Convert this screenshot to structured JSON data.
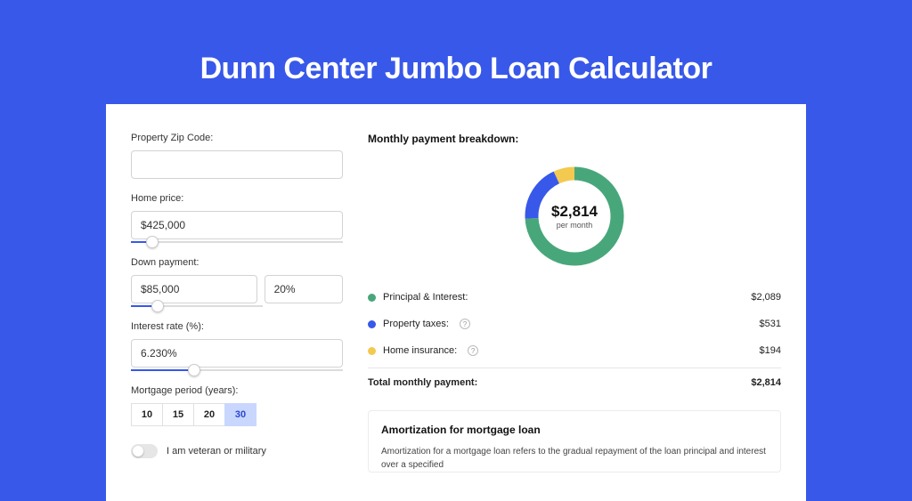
{
  "colors": {
    "page_bg": "#3858e9",
    "card_bg": "#ffffff",
    "title_color": "#ffffff",
    "slider_fill": "#3858e9",
    "period_active_bg": "#c9d7ff",
    "period_active_fg": "#2a48d0"
  },
  "title": "Dunn Center Jumbo Loan Calculator",
  "form": {
    "zip": {
      "label": "Property Zip Code:",
      "value": ""
    },
    "home_price": {
      "label": "Home price:",
      "value": "$425,000",
      "slider_pct": 10
    },
    "down_payment": {
      "label": "Down payment:",
      "amount": "$85,000",
      "percent": "20%",
      "slider_pct": 20
    },
    "interest": {
      "label": "Interest rate (%):",
      "value": "6.230%",
      "slider_pct": 30
    },
    "period": {
      "label": "Mortgage period (years):",
      "options": [
        "10",
        "15",
        "20",
        "30"
      ],
      "active_index": 3
    },
    "veteran": {
      "label": "I am veteran or military",
      "checked": false
    }
  },
  "breakdown": {
    "title": "Monthly payment breakdown:",
    "donut": {
      "amount": "$2,814",
      "label": "per month",
      "segments": [
        {
          "name": "principal_interest",
          "value": 2089,
          "color": "#48a77a",
          "pct": 74.2
        },
        {
          "name": "property_taxes",
          "value": 531,
          "color": "#3858e9",
          "pct": 18.9
        },
        {
          "name": "home_insurance",
          "value": 194,
          "color": "#f3c94f",
          "pct": 6.9
        }
      ],
      "stroke_width": 15
    },
    "rows": [
      {
        "dot": "#48a77a",
        "label": "Principal & Interest:",
        "info": false,
        "value": "$2,089"
      },
      {
        "dot": "#3858e9",
        "label": "Property taxes:",
        "info": true,
        "value": "$531"
      },
      {
        "dot": "#f3c94f",
        "label": "Home insurance:",
        "info": true,
        "value": "$194"
      }
    ],
    "total": {
      "label": "Total monthly payment:",
      "value": "$2,814"
    }
  },
  "amortization": {
    "title": "Amortization for mortgage loan",
    "text": "Amortization for a mortgage loan refers to the gradual repayment of the loan principal and interest over a specified"
  }
}
